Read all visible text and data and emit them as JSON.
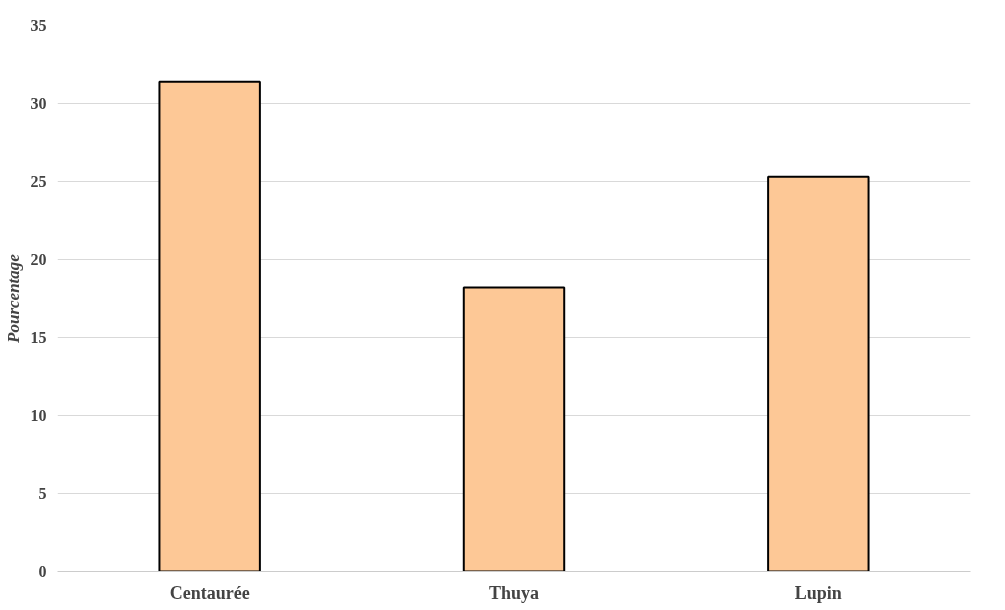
{
  "chart_data": {
    "type": "bar",
    "ylabel": "Pourcentage",
    "categories": [
      "Centaurée",
      "Thuya",
      "Lupin"
    ],
    "values": [
      31.4,
      18.2,
      25.3
    ],
    "color": "#fdc896",
    "ylim": [
      0,
      35
    ],
    "yticks": [
      0,
      5,
      10,
      15,
      20,
      25,
      30,
      35
    ],
    "grid": "y"
  }
}
